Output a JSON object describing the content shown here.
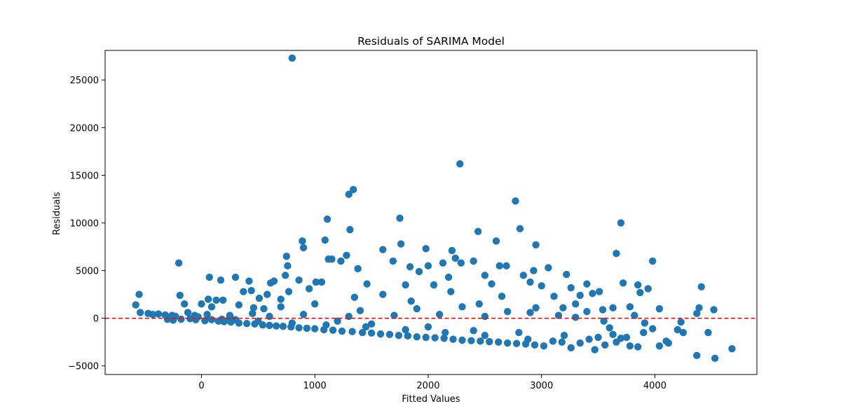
{
  "chart_data": {
    "type": "scatter",
    "title": "Residuals of SARIMA Model",
    "xlabel": "Fitted Values",
    "ylabel": "Residuals",
    "xlim": [
      -850,
      4900
    ],
    "ylim": [
      -5900,
      28100
    ],
    "xticks": [
      0,
      1000,
      2000,
      3000,
      4000
    ],
    "yticks": [
      -5000,
      0,
      5000,
      10000,
      15000,
      20000,
      25000
    ],
    "xtick_labels": [
      "0",
      "1000",
      "2000",
      "3000",
      "4000"
    ],
    "ytick_labels": [
      "−5000",
      "0",
      "5000",
      "10000",
      "15000",
      "20000",
      "25000"
    ],
    "grid": false,
    "marker_color": "#1f77b4",
    "reference_line": {
      "y": 0,
      "color": "#e8110f",
      "style": "dashed"
    },
    "series": [
      {
        "values_format": "[fitted, residual]",
        "points": [
          [
            -580,
            1400
          ],
          [
            -550,
            2500
          ],
          [
            -540,
            600
          ],
          [
            -470,
            500
          ],
          [
            -430,
            400
          ],
          [
            -380,
            450
          ],
          [
            -320,
            350
          ],
          [
            -260,
            300
          ],
          [
            -230,
            200
          ],
          [
            -200,
            5800
          ],
          [
            -190,
            2400
          ],
          [
            -150,
            1500
          ],
          [
            -120,
            600
          ],
          [
            -60,
            300
          ],
          [
            -30,
            150
          ],
          [
            0,
            1500
          ],
          [
            50,
            400
          ],
          [
            60,
            2000
          ],
          [
            70,
            4300
          ],
          [
            90,
            1200
          ],
          [
            130,
            1900
          ],
          [
            170,
            4000
          ],
          [
            190,
            1900
          ],
          [
            250,
            100
          ],
          [
            300,
            4300
          ],
          [
            330,
            1400
          ],
          [
            370,
            2800
          ],
          [
            420,
            3900
          ],
          [
            440,
            2900
          ],
          [
            460,
            1100
          ],
          [
            510,
            2100
          ],
          [
            550,
            1000
          ],
          [
            580,
            2500
          ],
          [
            610,
            3700
          ],
          [
            640,
            3900
          ],
          [
            700,
            2000
          ],
          [
            740,
            4500
          ],
          [
            750,
            6500
          ],
          [
            760,
            5500
          ],
          [
            770,
            2800
          ],
          [
            800,
            27300
          ],
          [
            860,
            4000
          ],
          [
            890,
            8100
          ],
          [
            900,
            7400
          ],
          [
            950,
            3100
          ],
          [
            1010,
            3800
          ],
          [
            1060,
            3800
          ],
          [
            1090,
            8200
          ],
          [
            1110,
            10400
          ],
          [
            1120,
            6200
          ],
          [
            1150,
            6200
          ],
          [
            1230,
            6000
          ],
          [
            1280,
            6600
          ],
          [
            1300,
            13000
          ],
          [
            1310,
            9300
          ],
          [
            1340,
            13500
          ],
          [
            1380,
            5200
          ],
          [
            1460,
            3600
          ],
          [
            1600,
            7200
          ],
          [
            1690,
            6000
          ],
          [
            1750,
            10500
          ],
          [
            1760,
            7800
          ],
          [
            1800,
            3500
          ],
          [
            1840,
            5400
          ],
          [
            1920,
            4900
          ],
          [
            1980,
            7300
          ],
          [
            2000,
            5500
          ],
          [
            2050,
            3500
          ],
          [
            2130,
            5800
          ],
          [
            2180,
            4300
          ],
          [
            2210,
            7100
          ],
          [
            2240,
            6300
          ],
          [
            2280,
            16200
          ],
          [
            2290,
            5800
          ],
          [
            2400,
            6000
          ],
          [
            2440,
            9100
          ],
          [
            2500,
            4500
          ],
          [
            2560,
            3600
          ],
          [
            2600,
            8100
          ],
          [
            2630,
            5500
          ],
          [
            2690,
            5500
          ],
          [
            2770,
            12300
          ],
          [
            2810,
            9400
          ],
          [
            2840,
            4500
          ],
          [
            2900,
            3800
          ],
          [
            2930,
            5000
          ],
          [
            2950,
            7700
          ],
          [
            3000,
            3400
          ],
          [
            3060,
            5300
          ],
          [
            3220,
            4600
          ],
          [
            3260,
            3200
          ],
          [
            3400,
            3600
          ],
          [
            3450,
            2600
          ],
          [
            3540,
            900
          ],
          [
            3630,
            1100
          ],
          [
            3660,
            6800
          ],
          [
            3700,
            10000
          ],
          [
            3720,
            3700
          ],
          [
            3850,
            3500
          ],
          [
            3870,
            2700
          ],
          [
            3940,
            3100
          ],
          [
            3980,
            6000
          ],
          [
            4040,
            1000
          ],
          [
            4370,
            500
          ],
          [
            4390,
            1100
          ],
          [
            4410,
            3300
          ],
          [
            4520,
            900
          ],
          [
            3110,
            2300
          ],
          [
            3190,
            1100
          ],
          [
            3300,
            1500
          ],
          [
            3340,
            2400
          ],
          [
            3510,
            2800
          ],
          [
            3780,
            1200
          ],
          [
            -300,
            -100
          ],
          [
            -250,
            -200
          ],
          [
            -180,
            -100
          ],
          [
            -100,
            -50
          ],
          [
            -50,
            -150
          ],
          [
            30,
            -250
          ],
          [
            90,
            -150
          ],
          [
            150,
            -300
          ],
          [
            200,
            -350
          ],
          [
            260,
            -400
          ],
          [
            330,
            -500
          ],
          [
            400,
            -550
          ],
          [
            470,
            -600
          ],
          [
            540,
            -700
          ],
          [
            600,
            -750
          ],
          [
            660,
            -800
          ],
          [
            720,
            -850
          ],
          [
            790,
            -900
          ],
          [
            860,
            -1000
          ],
          [
            930,
            -1050
          ],
          [
            1000,
            -1100
          ],
          [
            1080,
            -1200
          ],
          [
            1160,
            -1250
          ],
          [
            1240,
            -1350
          ],
          [
            1330,
            -1400
          ],
          [
            1420,
            -1500
          ],
          [
            1500,
            -1550
          ],
          [
            1580,
            -1650
          ],
          [
            1660,
            -1700
          ],
          [
            1740,
            -1800
          ],
          [
            1820,
            -1850
          ],
          [
            1900,
            -1950
          ],
          [
            1980,
            -2000
          ],
          [
            2060,
            -2050
          ],
          [
            2140,
            -2100
          ],
          [
            2220,
            -2200
          ],
          [
            2300,
            -2300
          ],
          [
            2380,
            -2350
          ],
          [
            2460,
            -2400
          ],
          [
            2540,
            -2450
          ],
          [
            2620,
            -2500
          ],
          [
            2700,
            -2600
          ],
          [
            2780,
            -2650
          ],
          [
            2860,
            -2700
          ],
          [
            2940,
            -2800
          ],
          [
            3020,
            -2900
          ],
          [
            3100,
            -2400
          ],
          [
            3180,
            -2500
          ],
          [
            3260,
            -3100
          ],
          [
            3340,
            -2600
          ],
          [
            3420,
            -2200
          ],
          [
            3470,
            -3300
          ],
          [
            3560,
            -2800
          ],
          [
            3630,
            -1700
          ],
          [
            3700,
            -2100
          ],
          [
            3780,
            -2900
          ],
          [
            3850,
            -3000
          ],
          [
            3910,
            -500
          ],
          [
            3980,
            -1100
          ],
          [
            4040,
            -2900
          ],
          [
            4120,
            -2600
          ],
          [
            4200,
            -1200
          ],
          [
            4230,
            -400
          ],
          [
            4250,
            -1500
          ],
          [
            4370,
            -3900
          ],
          [
            4470,
            -1500
          ],
          [
            4530,
            -4200
          ],
          [
            4680,
            -3200
          ],
          [
            3750,
            -2000
          ],
          [
            3660,
            -2500
          ],
          [
            3500,
            -2000
          ],
          [
            2880,
            -2200
          ],
          [
            2500,
            -1800
          ],
          [
            2150,
            -1500
          ],
          [
            1800,
            -1200
          ],
          [
            1450,
            -900
          ],
          [
            1100,
            -700
          ],
          [
            800,
            -500
          ],
          [
            500,
            -300
          ],
          [
            300,
            -150
          ],
          [
            180,
            -100
          ],
          [
            1200,
            -300
          ],
          [
            1500,
            -600
          ],
          [
            2000,
            -900
          ],
          [
            2400,
            -1300
          ],
          [
            2800,
            -1500
          ],
          [
            3200,
            -1800
          ],
          [
            3600,
            -1000
          ],
          [
            3900,
            -1500
          ],
          [
            4100,
            -2400
          ],
          [
            1300,
            200
          ],
          [
            1700,
            300
          ],
          [
            2100,
            400
          ],
          [
            2500,
            200
          ],
          [
            2900,
            600
          ],
          [
            3300,
            100
          ],
          [
            900,
            400
          ],
          [
            600,
            200
          ],
          [
            1400,
            800
          ],
          [
            1900,
            1000
          ],
          [
            2300,
            1200
          ],
          [
            2700,
            700
          ],
          [
            3150,
            300
          ],
          [
            3550,
            -300
          ],
          [
            3820,
            300
          ],
          [
            1600,
            2500
          ],
          [
            2200,
            2800
          ],
          [
            2650,
            2300
          ],
          [
            1000,
            1500
          ],
          [
            700,
            1200
          ],
          [
            1350,
            2200
          ],
          [
            1850,
            1800
          ],
          [
            2450,
            1500
          ],
          [
            2950,
            1100
          ],
          [
            3400,
            700
          ],
          [
            450,
            500
          ],
          [
            250,
            300
          ]
        ]
      }
    ]
  }
}
